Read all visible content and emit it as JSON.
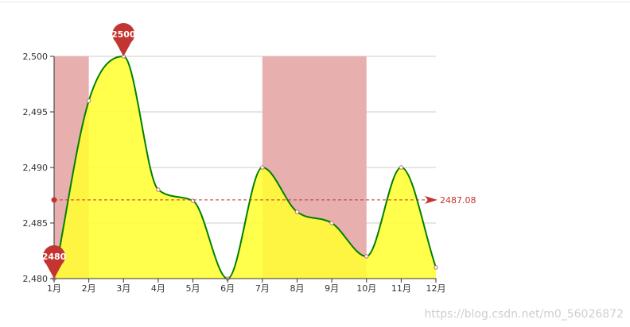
{
  "chart_data": {
    "type": "area",
    "categories": [
      "1月",
      "2月",
      "3月",
      "4月",
      "5月",
      "6月",
      "7月",
      "8月",
      "9月",
      "10月",
      "11月",
      "12月"
    ],
    "series": [
      {
        "values": [
          2480,
          2496,
          2500,
          2488,
          2487,
          2480,
          2490,
          2486,
          2485,
          2482,
          2490,
          2481
        ]
      }
    ],
    "ylim": [
      2480,
      2500
    ],
    "yticks": [
      2480,
      2485,
      2490,
      2495,
      2500
    ],
    "ytick_labels": [
      "2,480",
      "2,485",
      "2,490",
      "2,495",
      "2,500"
    ],
    "grid": true,
    "smooth": true,
    "mark_points": [
      {
        "label": "2500",
        "category": "3月",
        "value": 2500
      },
      {
        "label": "2480",
        "category": "1月",
        "value": 2480
      }
    ],
    "mark_line": {
      "label": "2487.08",
      "value": 2487.08,
      "kind": "average"
    },
    "mark_areas": [
      {
        "from": "1月",
        "to": "2月"
      },
      {
        "from": "7月",
        "to": "10月"
      }
    ],
    "colors": {
      "line": "#008000",
      "area": "#ffff33",
      "mark_area": "#e8afaf",
      "mark": "#c23531",
      "grid": "#cccccc",
      "axis": "#333333"
    }
  },
  "watermark": "https://blog.csdn.net/m0_56026872"
}
